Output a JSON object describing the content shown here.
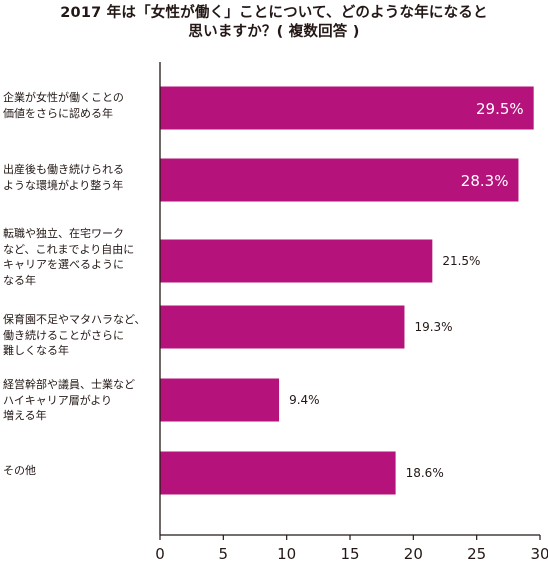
{
  "title_lines": [
    "2017 年は「女性が働く」ことについて、どのような年になると",
    "思いますか？( 複数回答 )"
  ],
  "chart_data": {
    "type": "bar",
    "orientation": "horizontal",
    "title": "2017 年は「女性が働く」ことについて、どのような年になると思いますか？( 複数回答 )",
    "xlabel": "",
    "ylabel": "",
    "categories": [
      "企業が女性が働くことの\n価値をさらに認める年",
      "出産後も働き続けられる\nような環境がより整う年",
      "転職や独立、在宅ワーク\nなど、これまでより自由に\nキャリアを選べるように\nなる年",
      "保育園不足やマタハラなど、\n働き続けることがさらに\n難しくなる年",
      "経営幹部や議員、士業など\nハイキャリア層がより\n増える年",
      "その他"
    ],
    "values": [
      29.5,
      28.3,
      21.5,
      19.3,
      9.4,
      18.6
    ],
    "value_labels": [
      "29.5%",
      "28.3%",
      "21.5%",
      "19.3%",
      "9.4%",
      "18.6%"
    ],
    "xlim": [
      0,
      30
    ],
    "xticks": [
      "0",
      "5",
      "10",
      "15",
      "20",
      "25",
      "30"
    ],
    "grid": false,
    "bar_color": "#b5137b",
    "label_inside_color": "#ffffff",
    "label_outside_color": "#231815"
  }
}
